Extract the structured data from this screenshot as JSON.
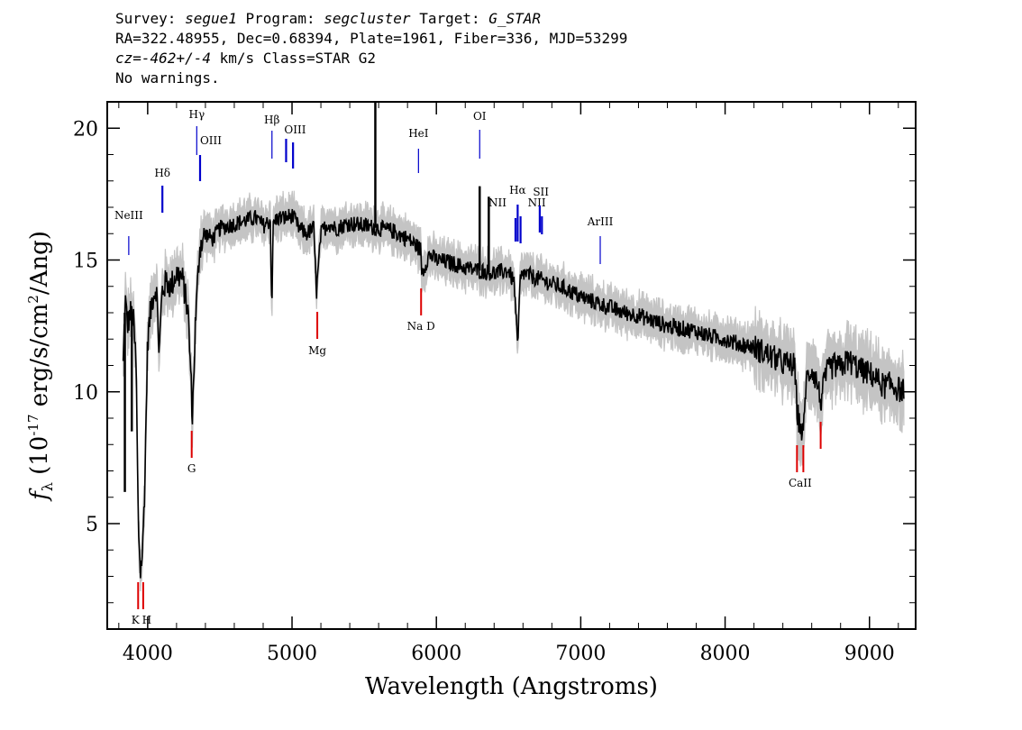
{
  "header": {
    "survey_label": "Survey:",
    "survey_value": "segue1",
    "program_label": "Program:",
    "program_value": "segcluster",
    "target_label": "Target:",
    "target_value": "G_STAR",
    "coords_line": "RA=322.48955, Dec=0.68394, Plate=1961, Fiber=336, MJD=53299",
    "cz_label": "cz=",
    "cz_value": "-462+/-4",
    "cz_rest": "km/s Class=STAR G2",
    "warnings": "No warnings."
  },
  "chart_data": {
    "type": "line",
    "title": "",
    "xlabel": "Wavelength (Angstroms)",
    "ylabel": "f_λ (10^-17 erg/s/cm^2/Ang)",
    "xlim": [
      3720,
      9320
    ],
    "ylim": [
      1,
      21
    ],
    "x_ticks": [
      4000,
      5000,
      6000,
      7000,
      8000,
      9000
    ],
    "y_ticks": [
      5,
      10,
      15,
      20
    ],
    "grid": false,
    "legend": "none",
    "colors": {
      "spectrum": "#000000",
      "error_band": "#c4c4c4",
      "emission_lines": "#0000cc",
      "absorption_lines": "#dd0000"
    },
    "series": [
      {
        "x": [
          3830,
          3845,
          3860,
          3880,
          3900,
          3920,
          3935,
          3950,
          3965,
          3980,
          4000,
          4030,
          4060,
          4080,
          4100,
          4130,
          4160,
          4200,
          4240,
          4280,
          4300,
          4310,
          4330,
          4360,
          4400,
          4450,
          4500,
          4560,
          4620,
          4680,
          4750,
          4800,
          4850,
          4860,
          4870,
          4900,
          4950,
          5000,
          5050,
          5100,
          5150,
          5170,
          5200,
          5250,
          5300,
          5400,
          5500,
          5600,
          5700,
          5800,
          5850,
          5890,
          5900,
          5950,
          6000,
          6100,
          6200,
          6300,
          6400,
          6500,
          6540,
          6563,
          6580,
          6600,
          6700,
          6800,
          6900,
          7000,
          7100,
          7200,
          7300,
          7400,
          7500,
          7600,
          7700,
          7800,
          7900,
          8000,
          8100,
          8200,
          8300,
          8400,
          8480,
          8500,
          8520,
          8542,
          8560,
          8600,
          8640,
          8662,
          8700,
          8750,
          8800,
          8850,
          8900,
          8950,
          9000,
          9050,
          9100,
          9150,
          9200,
          9240
        ],
        "y": [
          11.0,
          13.5,
          12.5,
          13.0,
          12.8,
          11.0,
          5.0,
          3.2,
          4.0,
          6.5,
          12.0,
          13.5,
          14.0,
          11.5,
          13.8,
          14.2,
          14.0,
          14.5,
          14.3,
          13.0,
          10.5,
          9.0,
          12.5,
          15.5,
          16.0,
          15.8,
          16.2,
          16.3,
          16.4,
          16.5,
          16.6,
          16.3,
          16.5,
          13.0,
          16.4,
          16.6,
          16.6,
          16.7,
          16.2,
          16.0,
          16.2,
          13.8,
          16.0,
          16.4,
          16.2,
          16.4,
          16.3,
          16.2,
          16.1,
          15.8,
          15.6,
          15.4,
          14.5,
          15.2,
          15.0,
          14.9,
          14.7,
          14.6,
          14.5,
          14.6,
          14.1,
          11.6,
          14.2,
          14.5,
          14.3,
          14.1,
          13.9,
          13.6,
          13.4,
          13.2,
          13.0,
          12.9,
          12.7,
          12.5,
          12.4,
          12.3,
          12.1,
          12.0,
          11.8,
          11.7,
          11.4,
          11.1,
          11.0,
          9.2,
          8.7,
          8.3,
          10.4,
          10.9,
          10.3,
          9.6,
          10.7,
          11.0,
          10.9,
          11.2,
          11.0,
          10.8,
          10.7,
          10.5,
          10.2,
          10.3,
          10.1,
          10.0
        ]
      }
    ],
    "spikes": [
      {
        "x": 3842,
        "y": 6.2
      },
      {
        "x": 3890,
        "y": 8.5
      },
      {
        "x": 5577,
        "y": 21.0
      },
      {
        "x": 6300,
        "y": 17.8
      },
      {
        "x": 6363,
        "y": 17.4
      }
    ],
    "emission_lines": [
      {
        "name": "NeIII",
        "wavelength": 3869
      },
      {
        "name": "Hδ",
        "wavelength": 4102
      },
      {
        "name": "Hγ",
        "wavelength": 4340
      },
      {
        "name": "OIII",
        "wavelength": 4363
      },
      {
        "name": "Hβ",
        "wavelength": 4861
      },
      {
        "name": "OIII",
        "wavelength": 4959
      },
      {
        "name": "OIII",
        "wavelength": 5007
      },
      {
        "name": "HeI",
        "wavelength": 5876
      },
      {
        "name": "OI",
        "wavelength": 6300
      },
      {
        "name": "NII",
        "wavelength": 6548
      },
      {
        "name": "Hα",
        "wavelength": 6563
      },
      {
        "name": "NII",
        "wavelength": 6583
      },
      {
        "name": "SII",
        "wavelength": 6716
      },
      {
        "name": "SII",
        "wavelength": 6731
      },
      {
        "name": "ArIII",
        "wavelength": 7135
      }
    ],
    "absorption_lines": [
      {
        "name": "K",
        "wavelength": 3934
      },
      {
        "name": "H",
        "wavelength": 3969
      },
      {
        "name": "G",
        "wavelength": 4305
      },
      {
        "name": "Mg",
        "wavelength": 5175
      },
      {
        "name": "Na D",
        "wavelength": 5894
      },
      {
        "name": "CaII",
        "wavelength": 8498
      },
      {
        "name": "CaII",
        "wavelength": 8542
      },
      {
        "name": "CaII",
        "wavelength": 8662
      }
    ]
  }
}
